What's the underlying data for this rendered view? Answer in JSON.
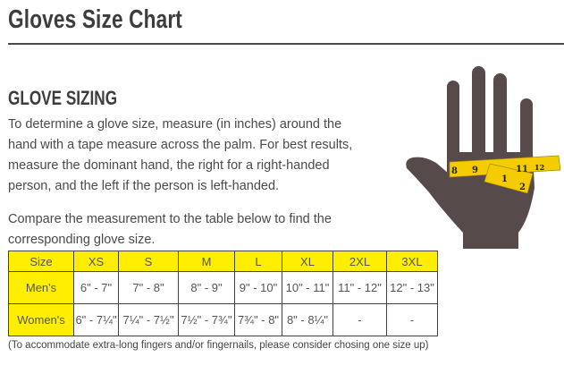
{
  "header": {
    "title": "Gloves Size Chart"
  },
  "section": {
    "heading": "GLOVE SIZING",
    "paragraph1": "To determine a glove size, measure (in inches) around the hand with a tape measure across the palm. For best results, measure the dominant hand, the right for a right-handed person, and the left if the person is left-handed.",
    "paragraph2": "Compare the measurement to the table below to find the corresponding glove size."
  },
  "table": {
    "header": [
      "Size",
      "XS",
      "S",
      "M",
      "L",
      "XL",
      "2XL",
      "3XL"
    ],
    "rows": [
      [
        "Men's",
        "6\" - 7\"",
        "7\" - 8\"",
        "8\" - 9\"",
        "9\" - 10\"",
        "10\" - 11\"",
        "11\" - 12\"",
        "12\" - 13\""
      ],
      [
        "Women's",
        "6\" - 7¼\"",
        "7¼\" - 7½\"",
        "7½\" - 7¾\"",
        "7¾\" - 8\"",
        "8\" - 8¼\"",
        "-",
        "-"
      ]
    ]
  },
  "footnote": "(To accommodate extra-long fingers and/or fingernails, please consider chosing one size up)",
  "image": {
    "icon": "hand-tape-measure-icon",
    "tape_numbers": [
      "8",
      "9",
      "1",
      "2",
      "11",
      "12"
    ]
  },
  "colors": {
    "accent_yellow": "#ffee00",
    "hand": "#564a4a",
    "tape": "#f5cc00",
    "text": "#4a4a4a"
  }
}
